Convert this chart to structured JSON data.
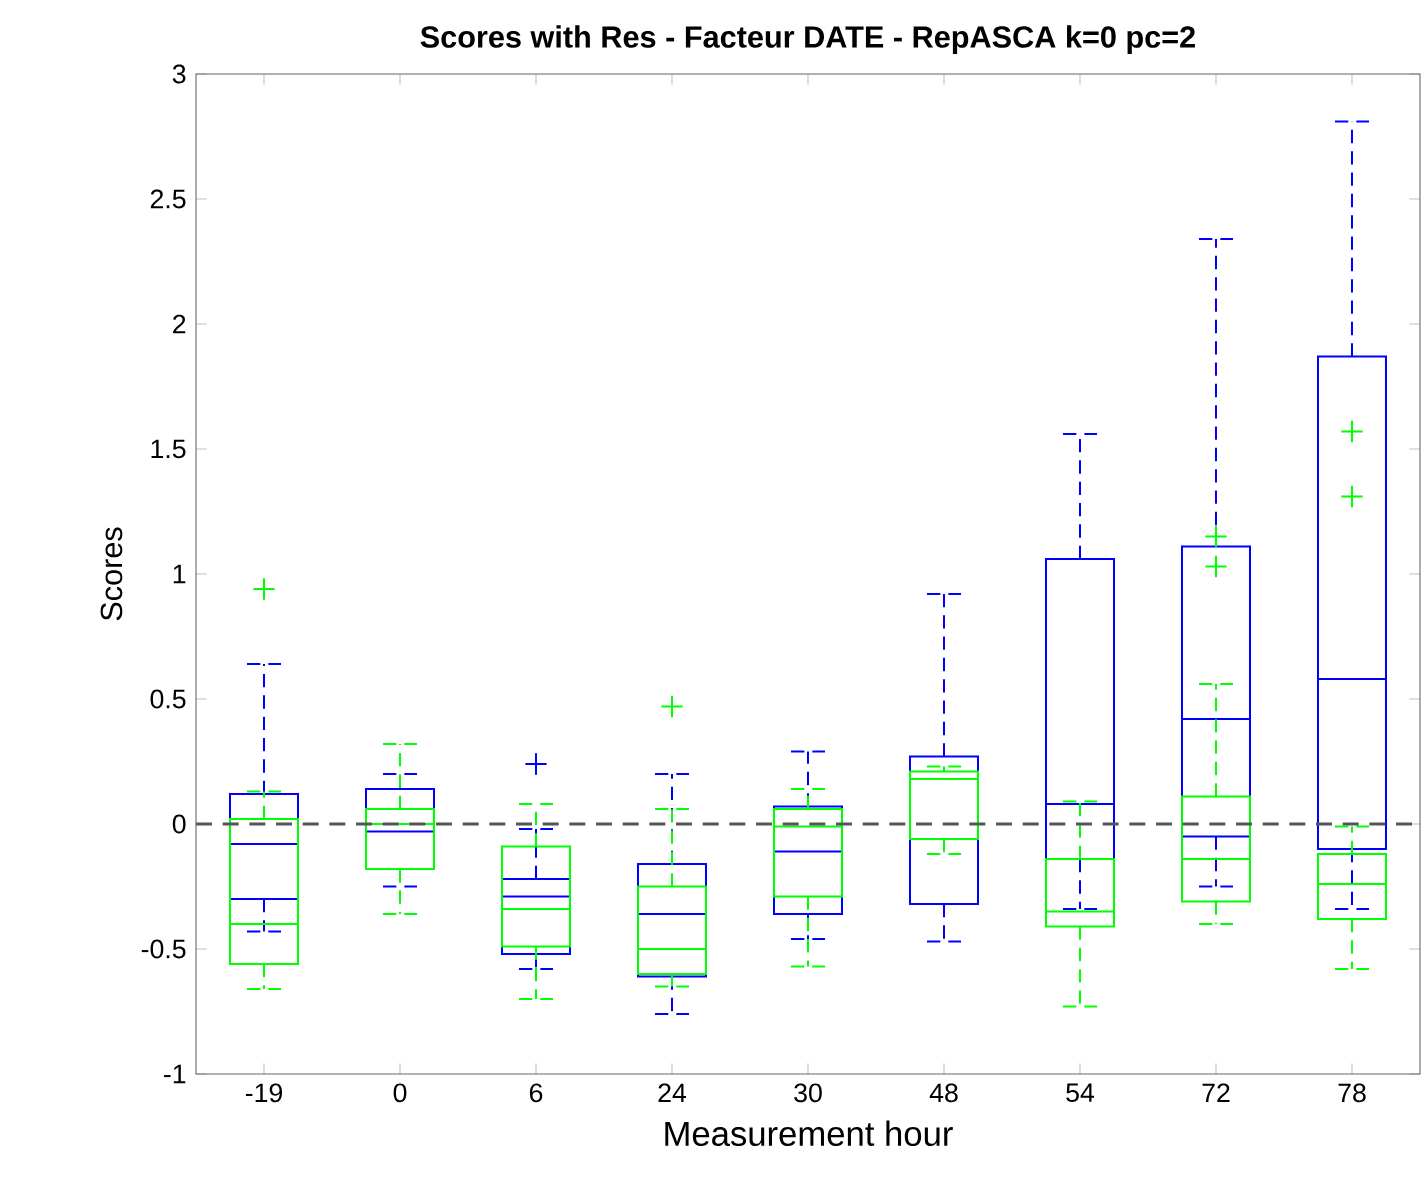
{
  "chart_data": {
    "type": "box",
    "title": "Scores with Res - Facteur DATE - RepASCA k=0 pc=2",
    "xlabel": "Measurement hour",
    "ylabel": "Scores",
    "categories": [
      "-19",
      "0",
      "6",
      "24",
      "30",
      "48",
      "54",
      "72",
      "78"
    ],
    "ylim": [
      -1,
      3
    ],
    "yticks": [
      -1,
      -0.5,
      0,
      0.5,
      1,
      1.5,
      2,
      2.5,
      3
    ],
    "ref_lines": [
      {
        "axis": "y",
        "value": 0,
        "color": "#555555",
        "line_style": "dashed"
      }
    ],
    "series": [
      {
        "color": "#0000ff",
        "boxes": [
          {
            "low": -0.43,
            "q1": -0.3,
            "median": -0.08,
            "q3": 0.12,
            "high": 0.64
          },
          {
            "low": -0.25,
            "q1": -0.18,
            "median": -0.03,
            "q3": 0.14,
            "high": 0.2
          },
          {
            "low": -0.58,
            "q1": -0.52,
            "median": -0.29,
            "q3": -0.22,
            "high": -0.02,
            "outliers": [
              0.24
            ]
          },
          {
            "low": -0.76,
            "q1": -0.61,
            "median": -0.36,
            "q3": -0.16,
            "high": 0.2
          },
          {
            "low": -0.46,
            "q1": -0.36,
            "median": -0.11,
            "q3": 0.07,
            "high": 0.29
          },
          {
            "low": -0.47,
            "q1": -0.32,
            "median": 0.18,
            "q3": 0.27,
            "high": 0.92
          },
          {
            "low": -0.34,
            "q1": -0.14,
            "median": 0.08,
            "q3": 1.06,
            "high": 1.56
          },
          {
            "low": -0.25,
            "q1": -0.05,
            "median": 0.42,
            "q3": 1.11,
            "high": 2.34
          },
          {
            "low": -0.34,
            "q1": -0.1,
            "median": 0.58,
            "q3": 1.87,
            "high": 2.81
          }
        ]
      },
      {
        "color": "#00ff00",
        "boxes": [
          {
            "low": -0.66,
            "q1": -0.56,
            "median": -0.4,
            "q3": 0.02,
            "high": 0.13,
            "outliers": [
              0.94
            ]
          },
          {
            "low": -0.36,
            "q1": -0.18,
            "median": 0.0,
            "q3": 0.06,
            "high": 0.32
          },
          {
            "low": -0.7,
            "q1": -0.49,
            "median": -0.34,
            "q3": -0.09,
            "high": 0.08
          },
          {
            "low": -0.65,
            "q1": -0.6,
            "median": -0.5,
            "q3": -0.25,
            "high": 0.06,
            "outliers": [
              0.47
            ]
          },
          {
            "low": -0.57,
            "q1": -0.29,
            "median": -0.01,
            "q3": 0.06,
            "high": 0.14
          },
          {
            "low": -0.12,
            "q1": -0.06,
            "median": 0.18,
            "q3": 0.21,
            "high": 0.23
          },
          {
            "low": -0.73,
            "q1": -0.41,
            "median": -0.35,
            "q3": -0.14,
            "high": 0.09
          },
          {
            "low": -0.4,
            "q1": -0.31,
            "median": -0.14,
            "q3": 0.11,
            "high": 0.56,
            "outliers": [
              1.15,
              1.03
            ]
          },
          {
            "low": -0.58,
            "q1": -0.38,
            "median": -0.24,
            "q3": -0.12,
            "high": -0.01,
            "outliers": [
              1.57,
              1.31
            ]
          }
        ]
      }
    ]
  }
}
